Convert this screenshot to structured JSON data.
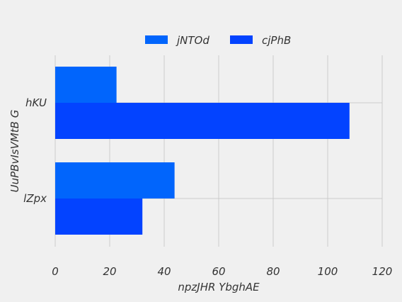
{
  "chart_data": {
    "type": "bar",
    "orientation": "horizontal",
    "categories": [
      "hKU",
      "lZpx"
    ],
    "series": [
      {
        "name": "jNTOd",
        "values": [
          22.5,
          43.8
        ],
        "color": "#0165fc"
      },
      {
        "name": "cjPhB",
        "values": [
          108,
          32
        ],
        "color": "#0343ff"
      }
    ],
    "xlabel": "npzJHR YbghAE",
    "ylabel": "UuPBvIsVMtB  G",
    "xlim": [
      0,
      120
    ],
    "xticks": [
      "0",
      "20",
      "40",
      "60",
      "80",
      "100",
      "120"
    ],
    "grid": true,
    "legend_position": "top-center",
    "background": "#f0f0f0"
  }
}
